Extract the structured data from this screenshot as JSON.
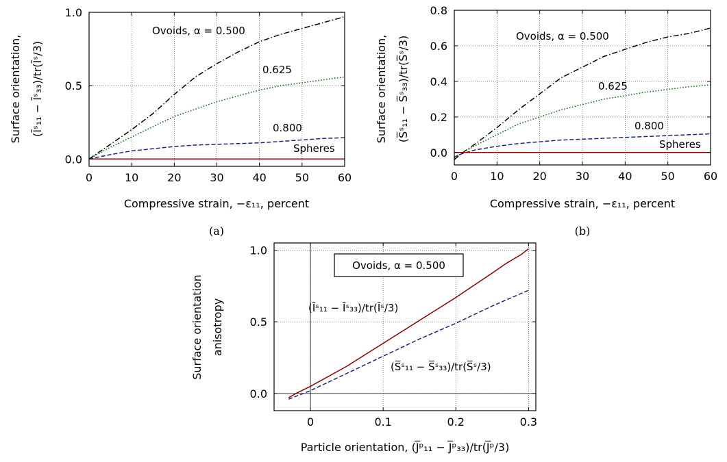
{
  "chart_data": [
    {
      "id": "a",
      "type": "line",
      "panel_label": "(a)",
      "xlabel": "Compressive strain, −ε₁₁, percent",
      "ylabel_line1": "Surface orientation,",
      "ylabel_line2": "(Īˢ₁₁ − Īˢ₃₃)/tr(Īˢ/3)",
      "xlim": [
        0,
        60
      ],
      "ylim": [
        -0.05,
        1.0
      ],
      "xticks": [
        "0",
        "10",
        "20",
        "30",
        "40",
        "50",
        "60"
      ],
      "xtick_values": [
        0,
        10,
        20,
        30,
        40,
        50,
        60
      ],
      "yticks": [
        "0.0",
        "0.5",
        "1.0"
      ],
      "ytick_values": [
        0,
        0.5,
        1.0
      ],
      "grid": true,
      "annotations": [
        "Ovoids, α = 0.500",
        "0.625",
        "0.800",
        "Spheres"
      ],
      "series": [
        {
          "label": "Ovoids, α = 0.500",
          "color": "#000000",
          "dash": "dashdot",
          "x": [
            0,
            5,
            10,
            15,
            20,
            25,
            30,
            35,
            40,
            45,
            50,
            55,
            60
          ],
          "y": [
            0,
            0.1,
            0.2,
            0.31,
            0.44,
            0.56,
            0.65,
            0.73,
            0.8,
            0.85,
            0.89,
            0.93,
            0.97
          ]
        },
        {
          "label": "0.625",
          "color": "#006400",
          "dash": "dotted",
          "x": [
            0,
            5,
            10,
            15,
            20,
            25,
            30,
            35,
            40,
            45,
            50,
            55,
            60
          ],
          "y": [
            0,
            0.08,
            0.15,
            0.22,
            0.29,
            0.34,
            0.39,
            0.43,
            0.47,
            0.5,
            0.52,
            0.54,
            0.56
          ]
        },
        {
          "label": "0.800",
          "color": "#1a237e",
          "dash": "dashed",
          "x": [
            0,
            5,
            10,
            15,
            20,
            25,
            30,
            35,
            40,
            45,
            50,
            55,
            60
          ],
          "y": [
            0,
            0.03,
            0.055,
            0.07,
            0.085,
            0.095,
            0.1,
            0.105,
            0.11,
            0.12,
            0.13,
            0.14,
            0.145
          ]
        },
        {
          "label": "Spheres",
          "color": "#8b0000",
          "dash": "solid",
          "x": [
            0,
            60
          ],
          "y": [
            0,
            0
          ]
        }
      ]
    },
    {
      "id": "b",
      "type": "line",
      "panel_label": "(b)",
      "xlabel": "Compressive strain, −ε₁₁, percent",
      "ylabel_line1": "Surface orientation,",
      "ylabel_line2": "(S̅ˢ₁₁ − S̅ˢ₃₃)/tr(S̅ˢ/3)",
      "xlim": [
        0,
        60
      ],
      "ylim": [
        -0.07,
        0.8
      ],
      "xticks": [
        "0",
        "10",
        "20",
        "30",
        "40",
        "50",
        "60"
      ],
      "xtick_values": [
        0,
        10,
        20,
        30,
        40,
        50,
        60
      ],
      "yticks": [
        "0.0",
        "0.2",
        "0.4",
        "0.6",
        "0.8"
      ],
      "ytick_values": [
        0,
        0.2,
        0.4,
        0.6,
        0.8
      ],
      "grid": true,
      "annotations": [
        "Ovoids, α = 0.500",
        "0.625",
        "0.800",
        "Spheres"
      ],
      "series": [
        {
          "label": "Ovoids, α = 0.500",
          "color": "#000000",
          "dash": "dashdot",
          "x": [
            0,
            2,
            5,
            10,
            15,
            20,
            25,
            30,
            35,
            40,
            45,
            50,
            55,
            60
          ],
          "y": [
            -0.04,
            0,
            0.05,
            0.14,
            0.24,
            0.33,
            0.42,
            0.48,
            0.54,
            0.58,
            0.62,
            0.65,
            0.67,
            0.7
          ]
        },
        {
          "label": "0.625",
          "color": "#006400",
          "dash": "dotted",
          "x": [
            0,
            2,
            5,
            10,
            15,
            20,
            25,
            30,
            35,
            40,
            45,
            50,
            55,
            60
          ],
          "y": [
            -0.03,
            0,
            0.04,
            0.1,
            0.16,
            0.2,
            0.24,
            0.27,
            0.3,
            0.32,
            0.34,
            0.355,
            0.37,
            0.38
          ]
        },
        {
          "label": "0.800",
          "color": "#1a237e",
          "dash": "dashed",
          "x": [
            0,
            2,
            5,
            10,
            15,
            20,
            25,
            30,
            35,
            40,
            45,
            50,
            55,
            60
          ],
          "y": [
            -0.025,
            -0.005,
            0.015,
            0.035,
            0.05,
            0.06,
            0.07,
            0.075,
            0.08,
            0.085,
            0.09,
            0.095,
            0.1,
            0.105
          ]
        },
        {
          "label": "Spheres",
          "color": "#8b0000",
          "dash": "solid",
          "x": [
            0,
            60
          ],
          "y": [
            0,
            0
          ]
        }
      ]
    },
    {
      "id": "c",
      "type": "line",
      "xlabel": "Particle orientation, (J̅ᵖ₁₁ − J̅ᵖ₃₃)/tr(J̅ᵖ/3)",
      "ylabel_line1": "Surface orientation",
      "ylabel_line2": "anisotropy",
      "xlim": [
        -0.05,
        0.31
      ],
      "ylim": [
        -0.12,
        1.05
      ],
      "xticks": [
        "0",
        "0.1",
        "0.2",
        "0.3"
      ],
      "xtick_values": [
        0,
        0.1,
        0.2,
        0.3
      ],
      "yticks": [
        "0.0",
        "0.5",
        "1.0"
      ],
      "ytick_values": [
        0,
        0.5,
        1.0
      ],
      "grid": true,
      "annotations": [
        "Ovoids, α = 0.500"
      ],
      "series": [
        {
          "label": "(Īˢ₁₁ − Īˢ₃₃)/tr(Īˢ/3)",
          "color": "#8b0000",
          "dash": "solid",
          "x": [
            -0.03,
            -0.02,
            0,
            0.05,
            0.1,
            0.15,
            0.2,
            0.25,
            0.27,
            0.29,
            0.3
          ],
          "y": [
            -0.03,
            0,
            0.05,
            0.19,
            0.35,
            0.51,
            0.67,
            0.84,
            0.91,
            0.97,
            1.01
          ]
        },
        {
          "label": "(S̅ˢ₁₁ − S̅ˢ₃₃)/tr(S̅ˢ/3)",
          "color": "#1a237e",
          "dash": "dashed",
          "x": [
            -0.03,
            -0.02,
            0,
            0.05,
            0.1,
            0.15,
            0.2,
            0.25,
            0.3
          ],
          "y": [
            -0.04,
            -0.02,
            0.02,
            0.14,
            0.26,
            0.38,
            0.49,
            0.61,
            0.72
          ]
        }
      ]
    }
  ]
}
